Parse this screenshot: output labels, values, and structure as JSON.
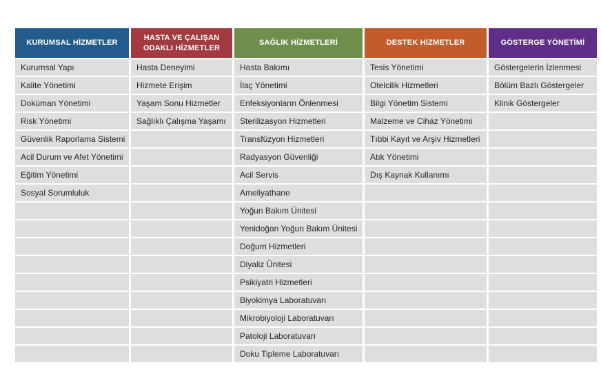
{
  "table": {
    "row_count": 17,
    "cell_bg": "#dedede",
    "text_color": "#262626",
    "columns": [
      {
        "header": "KURUMSAL HİZMETLER",
        "color": "#215c8c",
        "items": [
          "Kurumsal Yapı",
          "Kalite Yönetimi",
          "Doküman Yönetimi",
          "Risk Yönetimi",
          "Güvenlik Raporlama Sistemi",
          "Acil Durum ve Afet Yönetimi",
          "Eğitim Yönetimi",
          "Sosyal Sorumluluk"
        ]
      },
      {
        "header": "HASTA VE ÇALIŞAN ODAKLI HİZMETLER",
        "color": "#a13b40",
        "items": [
          "Hasta Deneyimi",
          "Hizmete Erişim",
          "Yaşam Sonu Hizmetler",
          "Sağlıklı Çalışma Yaşamı"
        ]
      },
      {
        "header": "SAĞLIK HİZMETLERİ",
        "color": "#6e8e4c",
        "items": [
          "Hasta Bakımı",
          "İlaç Yönetimi",
          "Enfeksiyonların Önlenmesi",
          "Sterilizasyon Hizmetleri",
          "Transfüzyon Hizmetleri",
          "Radyasyon Güvenliği",
          "Acil Servis",
          "Ameliyathane",
          "Yoğun Bakım Ünitesi",
          "Yenidoğan Yoğun Bakım Ünitesi",
          "Doğum Hizmetleri",
          "Diyaliz Ünitesi",
          "Psikiyatri Hizmetleri",
          "Biyokimya Laboratuvarı",
          "Mikrobiyoloji Laboratuvarı",
          "Patoloji Laboratuvarı",
          "Doku Tipleme Laboratuvarı"
        ]
      },
      {
        "header": "DESTEK HİZMETLER",
        "color": "#c35b2a",
        "items": [
          "Tesis Yönetimi",
          "Otelcilik Hizmetleri",
          "Bilgi Yönetim Sistemi",
          "Malzeme ve Cihaz Yönetimi",
          "Tıbbi Kayıt ve Arşiv Hizmetleri",
          "Atık Yönetimi",
          "Dış Kaynak Kullanımı"
        ]
      },
      {
        "header": "GÖSTERGE YÖNETİMİ",
        "color": "#5f2e88",
        "items": [
          "Göstergelerin İzlenmesi",
          "Bölüm Bazlı Göstergeler",
          "Klinik Göstergeler"
        ]
      }
    ]
  }
}
